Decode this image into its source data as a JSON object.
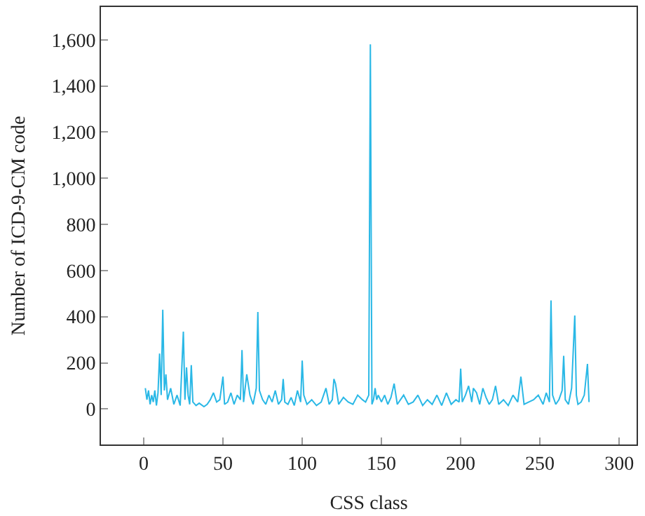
{
  "chart_data": {
    "type": "line",
    "xlabel": "CSS class",
    "ylabel": "Number of ICD-9-CM code",
    "x": [
      1,
      2,
      3,
      4,
      5,
      6,
      7,
      8,
      9,
      10,
      11,
      12,
      13,
      14,
      15,
      17,
      19,
      21,
      23,
      25,
      26,
      27,
      28,
      29,
      30,
      31,
      33,
      35,
      38,
      40,
      42,
      44,
      46,
      48,
      50,
      51,
      53,
      55,
      57,
      59,
      61,
      62,
      63,
      65,
      67,
      69,
      71,
      72,
      73,
      75,
      77,
      79,
      81,
      83,
      85,
      87,
      88,
      89,
      91,
      93,
      95,
      97,
      99,
      100,
      101,
      103,
      106,
      109,
      112,
      115,
      117,
      119,
      120,
      121,
      123,
      126,
      129,
      132,
      135,
      138,
      140,
      142,
      143,
      144,
      145,
      146,
      147,
      148,
      150,
      152,
      154,
      156,
      158,
      160,
      162,
      164,
      167,
      170,
      173,
      176,
      179,
      182,
      185,
      188,
      191,
      194,
      197,
      199,
      200,
      201,
      203,
      205,
      207,
      208,
      210,
      212,
      214,
      216,
      218,
      220,
      222,
      224,
      227,
      230,
      233,
      236,
      238,
      240,
      243,
      246,
      249,
      252,
      254,
      256,
      257,
      258,
      260,
      262,
      264,
      265,
      266,
      268,
      270,
      272,
      273,
      274,
      276,
      278,
      280,
      281
    ],
    "series": [
      {
        "color": "#2ab8e6",
        "values": [
          90,
          40,
          80,
          20,
          60,
          30,
          80,
          15,
          70,
          240,
          60,
          430,
          80,
          150,
          40,
          90,
          20,
          60,
          15,
          335,
          40,
          180,
          60,
          20,
          190,
          30,
          15,
          25,
          10,
          20,
          40,
          70,
          30,
          40,
          140,
          20,
          30,
          70,
          20,
          60,
          40,
          255,
          30,
          150,
          60,
          20,
          90,
          420,
          80,
          40,
          20,
          60,
          30,
          80,
          20,
          40,
          130,
          30,
          20,
          50,
          15,
          80,
          30,
          210,
          60,
          20,
          40,
          15,
          30,
          90,
          20,
          40,
          130,
          110,
          20,
          50,
          30,
          20,
          60,
          40,
          30,
          60,
          1580,
          20,
          40,
          90,
          40,
          60,
          30,
          60,
          20,
          50,
          110,
          20,
          40,
          60,
          20,
          30,
          60,
          15,
          40,
          20,
          60,
          15,
          70,
          20,
          40,
          30,
          175,
          30,
          60,
          100,
          30,
          90,
          70,
          20,
          90,
          50,
          20,
          40,
          100,
          20,
          40,
          15,
          60,
          30,
          140,
          20,
          30,
          40,
          60,
          20,
          70,
          30,
          470,
          60,
          20,
          40,
          80,
          230,
          40,
          20,
          90,
          405,
          60,
          20,
          30,
          60,
          195,
          30
        ]
      }
    ],
    "xlim": [
      -27,
      311
    ],
    "ylim": [
      -154,
      1742
    ],
    "xticks": [
      0,
      50,
      100,
      150,
      200,
      250,
      300
    ],
    "yticks": [
      0,
      {
        "value": 200,
        "label": "200"
      },
      {
        "value": 400,
        "label": "400"
      },
      {
        "value": 600,
        "label": "600"
      },
      {
        "value": 800,
        "label": "800"
      },
      {
        "value": 1000,
        "label": "1,000"
      },
      {
        "value": 1200,
        "label": "1,200"
      },
      {
        "value": 1400,
        "label": "1,400"
      },
      {
        "value": 1600,
        "label": "1,600"
      }
    ],
    "marker": "none",
    "line_style": "solid"
  }
}
